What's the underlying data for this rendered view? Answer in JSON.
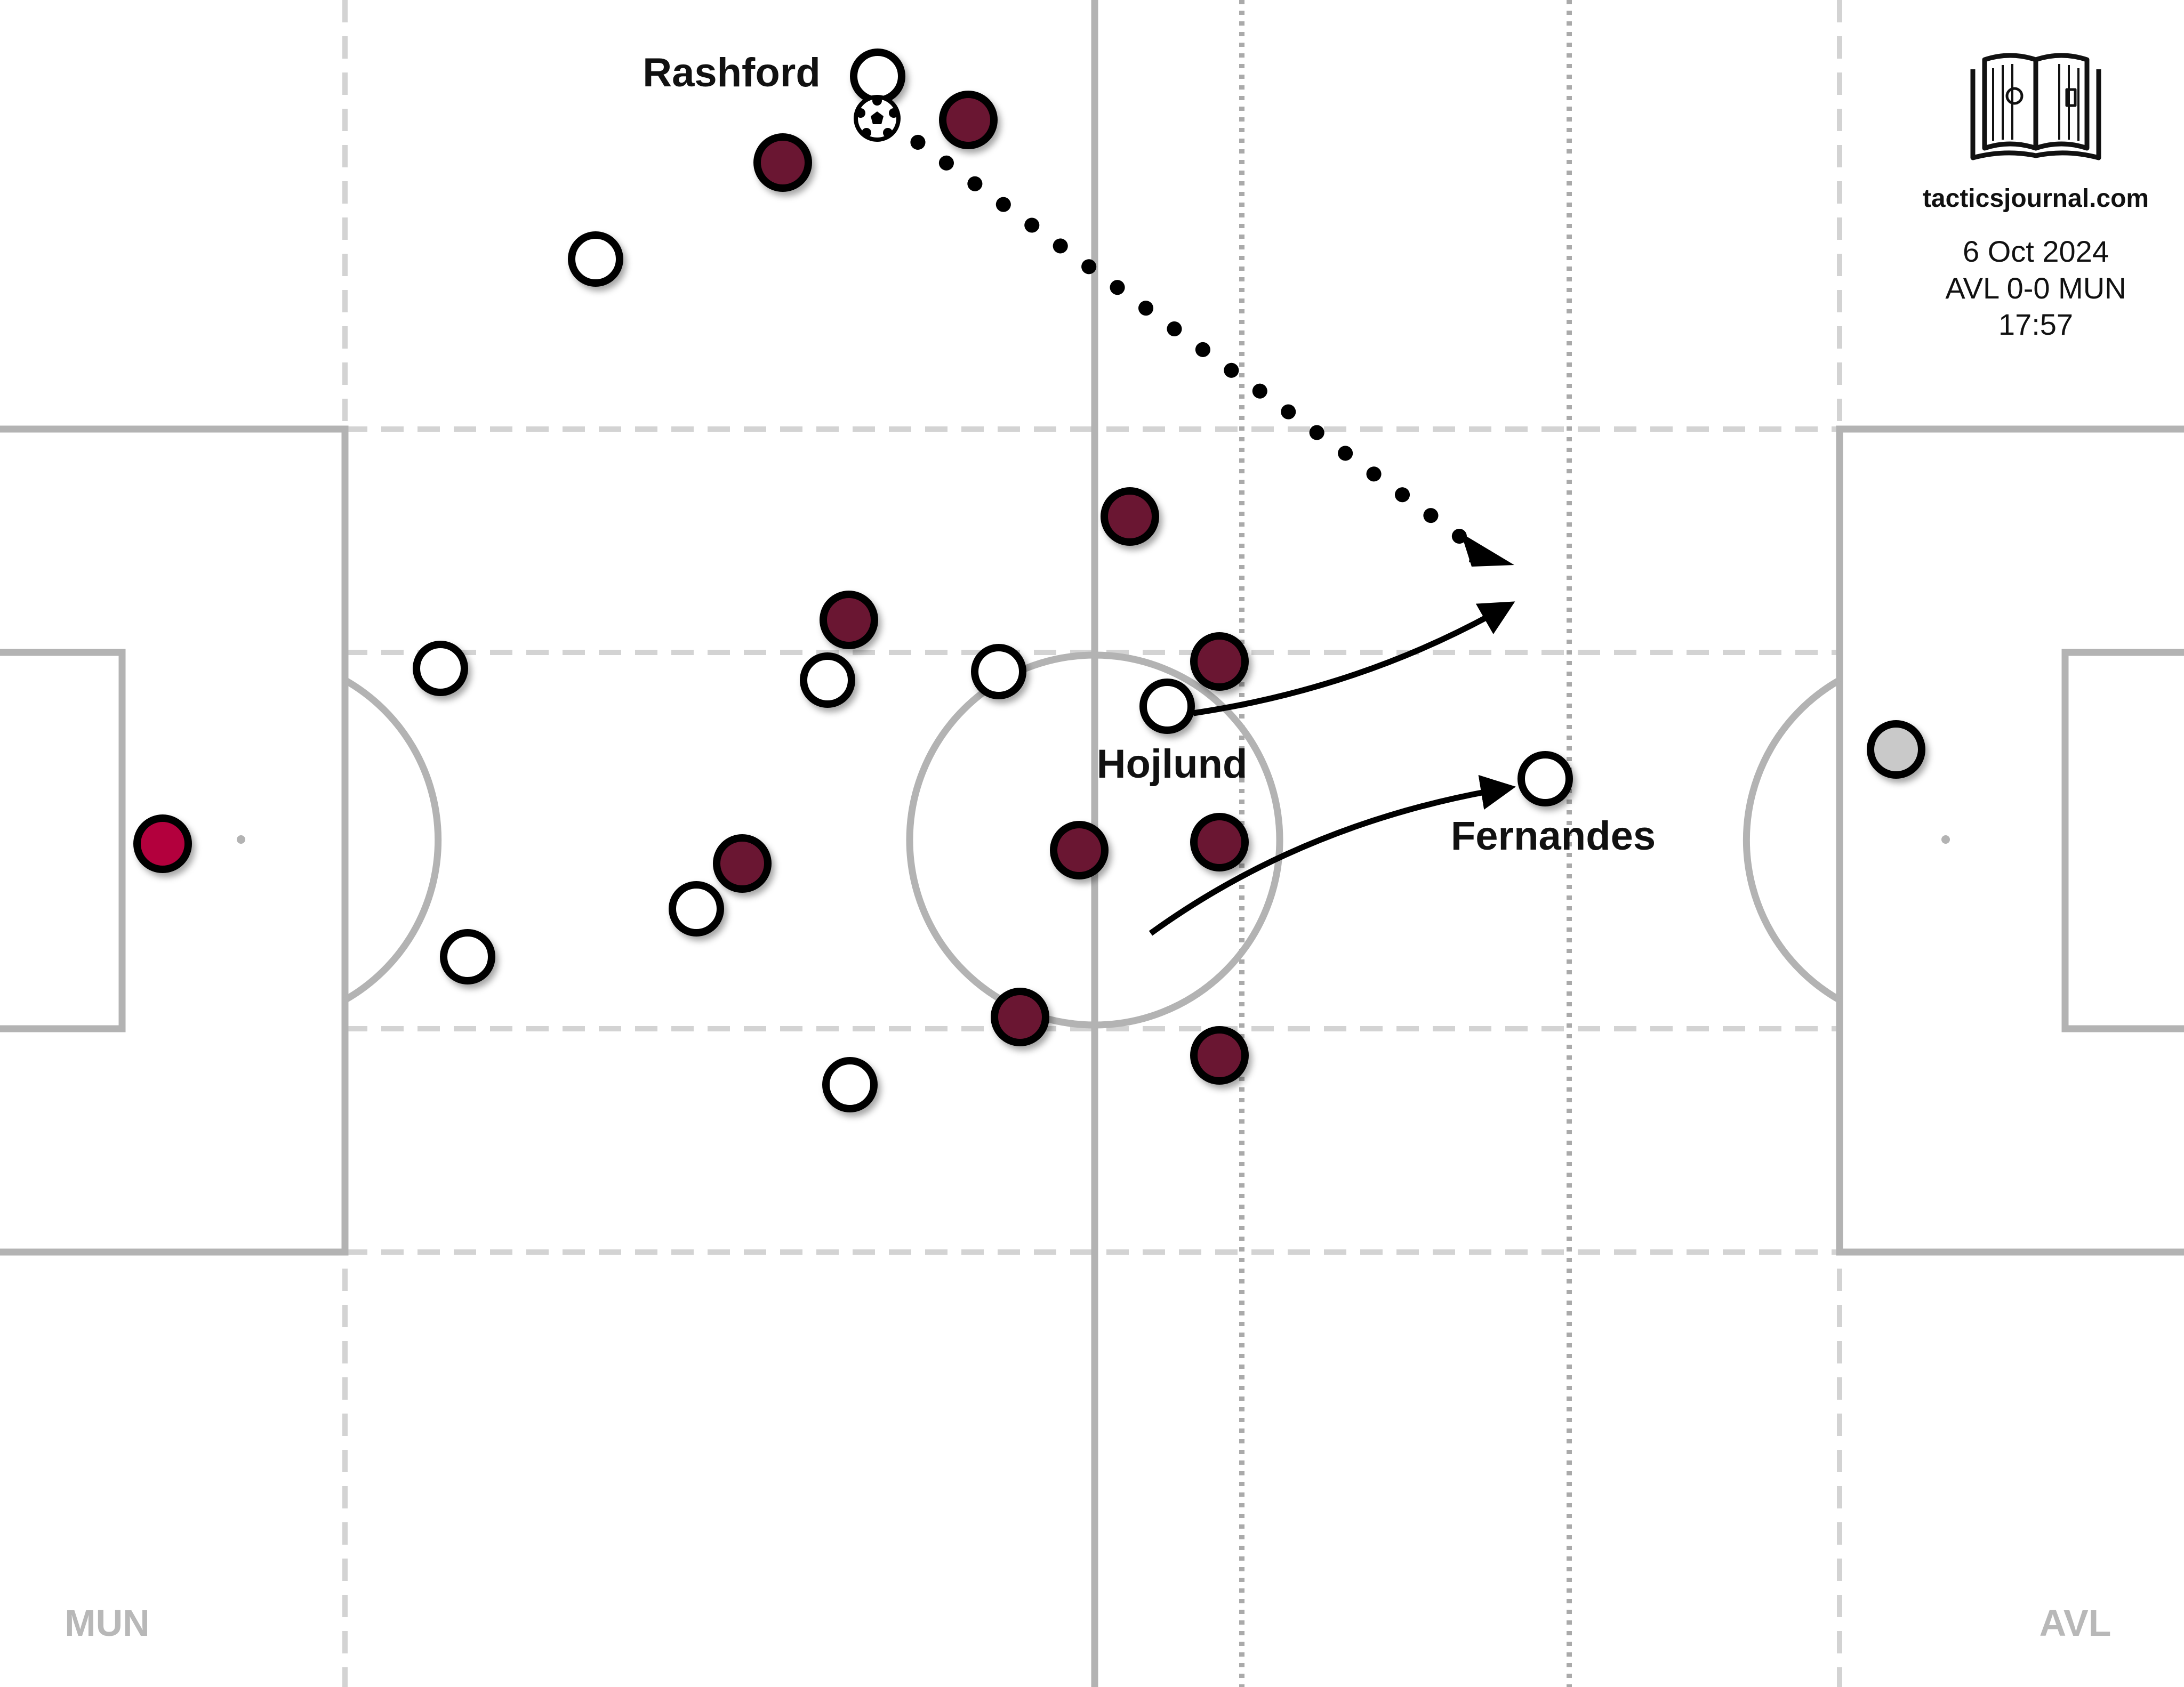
{
  "site": "tacticsjournal.com",
  "match": {
    "date": "6 Oct 2024",
    "score": "AVL 0-0 MUN",
    "time": "17:57"
  },
  "teams": {
    "left": "MUN",
    "right": "AVL"
  },
  "players": {
    "rashford": "Rashford",
    "hojlund": "Hojlund",
    "fernandes": "Fernandes"
  },
  "colors": {
    "pitch_lines": "#b3b3b3",
    "zone_lines": "#d3d3d3",
    "outfield_white": "#ffffff",
    "opponent_maroon": "#6b1533",
    "goalkeeper_left": "#b3063d",
    "goalkeeper_right": "#c9c9c9",
    "team_label": "#b8b8b8"
  }
}
